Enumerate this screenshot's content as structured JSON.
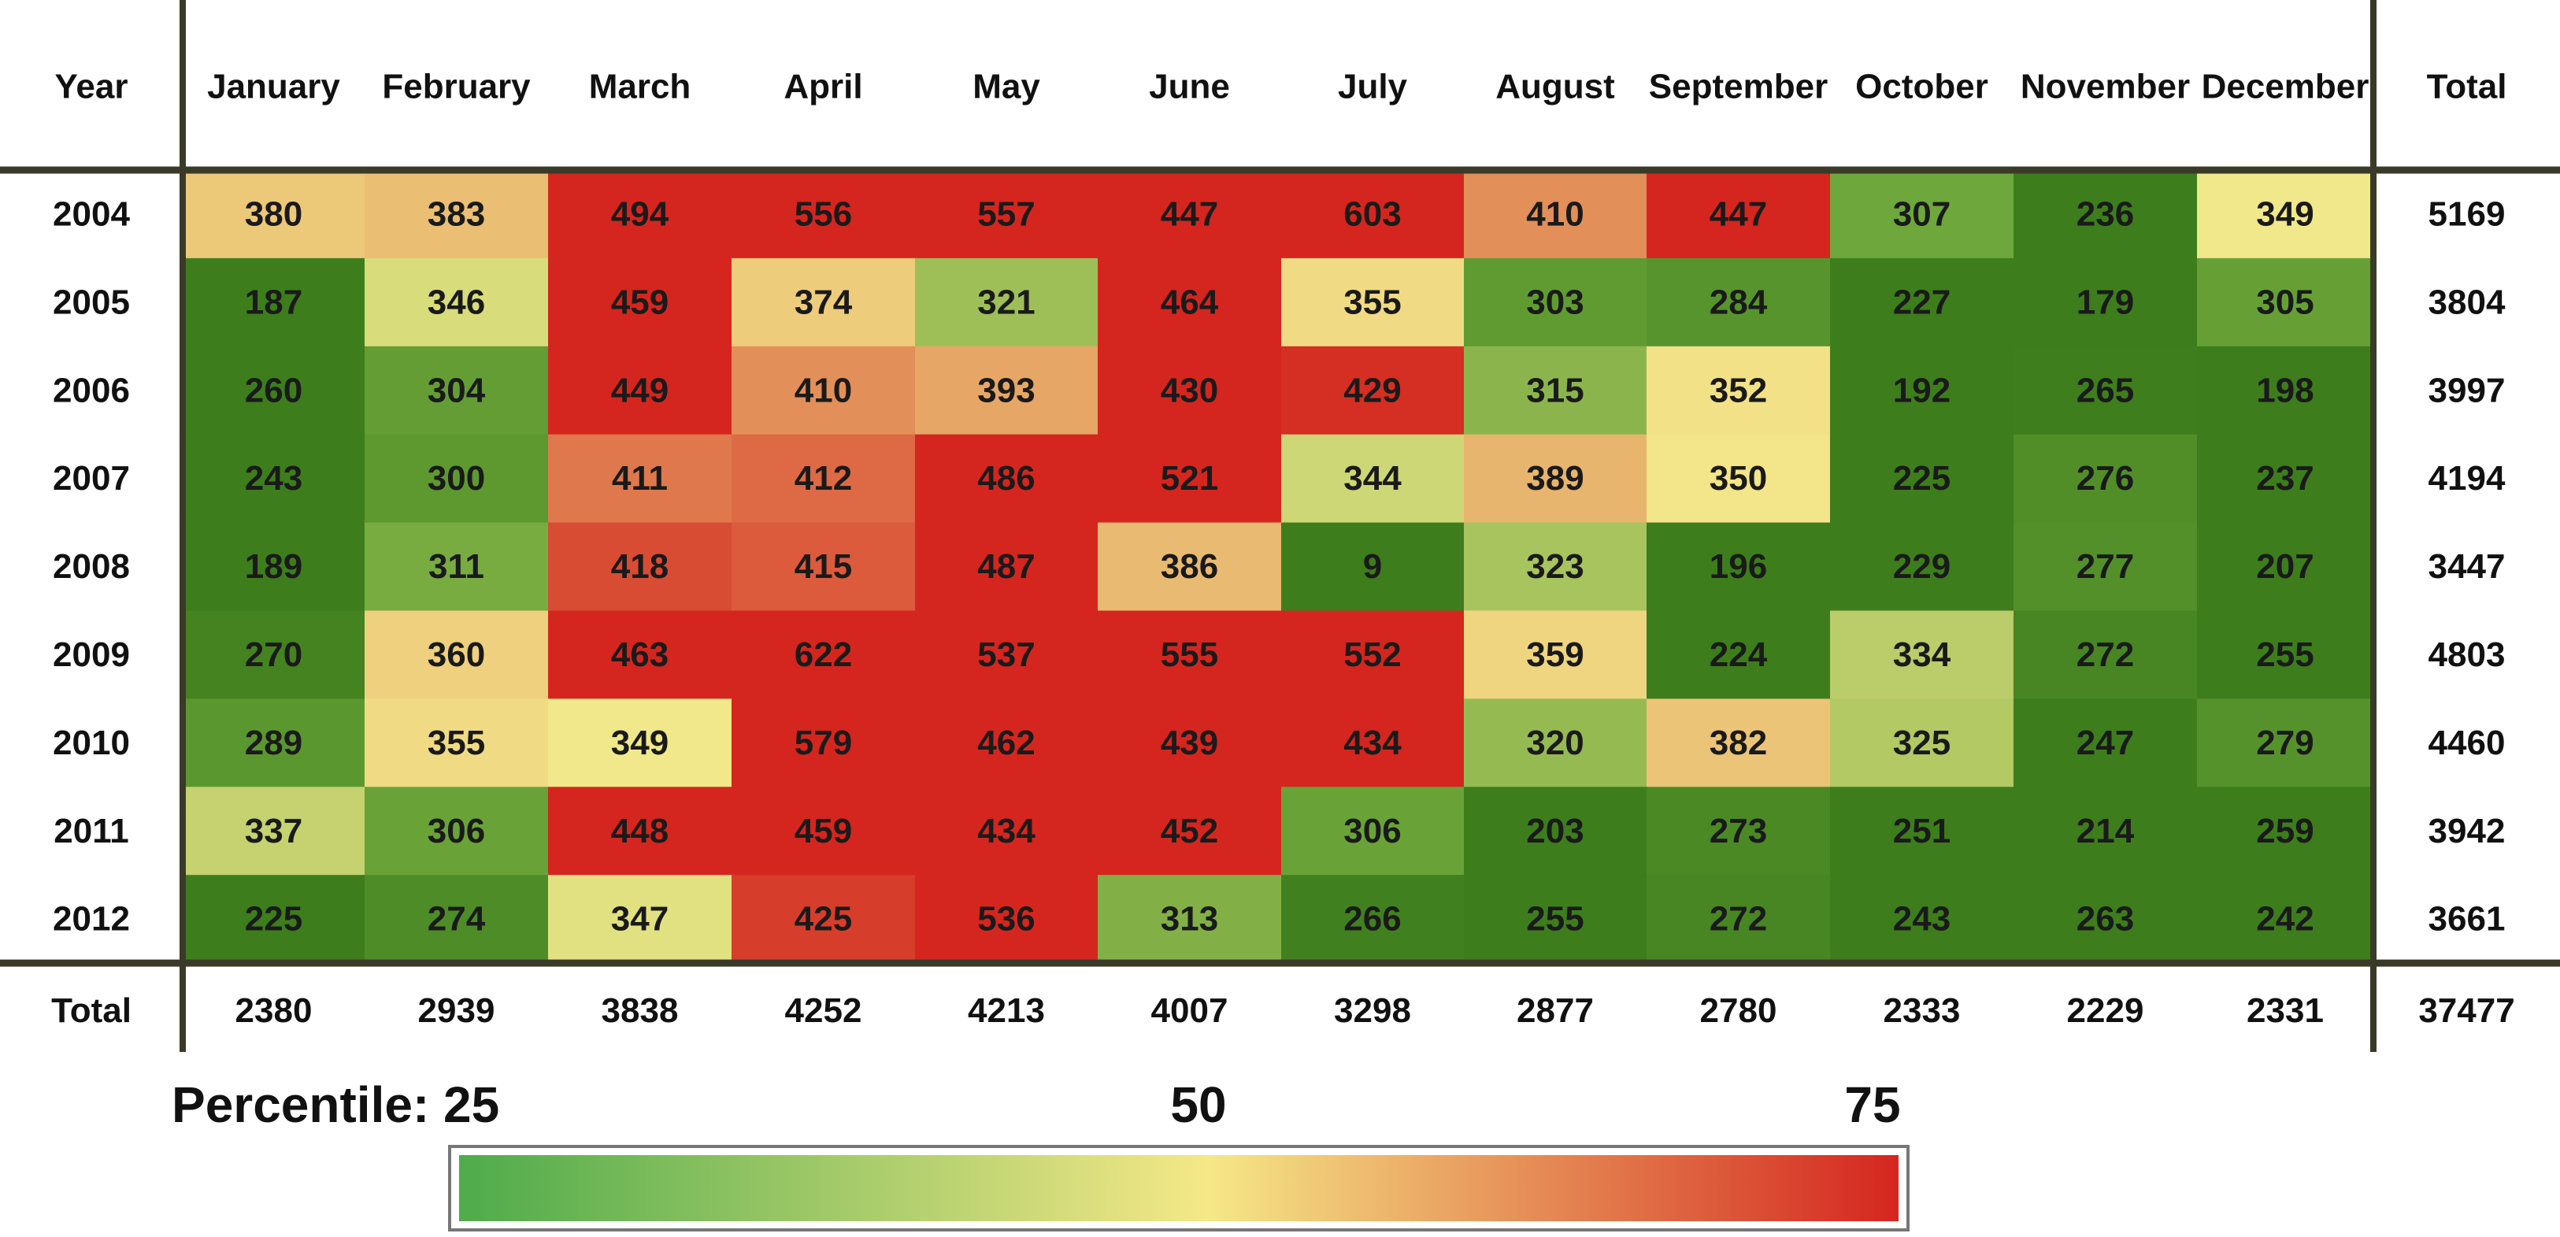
{
  "chart_data": {
    "type": "heatmap",
    "corner_label": "Year",
    "total_label": "Total",
    "columns": [
      "January",
      "February",
      "March",
      "April",
      "May",
      "June",
      "July",
      "August",
      "September",
      "October",
      "November",
      "December"
    ],
    "rows": [
      {
        "year": "2004",
        "values": [
          380,
          383,
          494,
          556,
          557,
          447,
          603,
          410,
          447,
          307,
          236,
          349
        ],
        "total": 5169
      },
      {
        "year": "2005",
        "values": [
          187,
          346,
          459,
          374,
          321,
          464,
          355,
          303,
          284,
          227,
          179,
          305
        ],
        "total": 3804
      },
      {
        "year": "2006",
        "values": [
          260,
          304,
          449,
          410,
          393,
          430,
          429,
          315,
          352,
          192,
          265,
          198
        ],
        "total": 3997
      },
      {
        "year": "2007",
        "values": [
          243,
          300,
          411,
          412,
          486,
          521,
          344,
          389,
          350,
          225,
          276,
          237
        ],
        "total": 4194
      },
      {
        "year": "2008",
        "values": [
          189,
          311,
          418,
          415,
          487,
          386,
          9,
          323,
          196,
          229,
          277,
          207
        ],
        "total": 3447
      },
      {
        "year": "2009",
        "values": [
          270,
          360,
          463,
          622,
          537,
          555,
          552,
          359,
          224,
          334,
          272,
          255
        ],
        "total": 4803
      },
      {
        "year": "2010",
        "values": [
          289,
          355,
          349,
          579,
          462,
          439,
          434,
          320,
          382,
          325,
          247,
          279
        ],
        "total": 4460
      },
      {
        "year": "2011",
        "values": [
          337,
          306,
          448,
          459,
          434,
          452,
          306,
          203,
          273,
          251,
          214,
          259
        ],
        "total": 3942
      },
      {
        "year": "2012",
        "values": [
          225,
          274,
          347,
          425,
          536,
          313,
          266,
          255,
          272,
          243,
          263,
          242
        ],
        "total": 3661
      }
    ],
    "column_totals": [
      2380,
      2939,
      3838,
      4252,
      4213,
      4007,
      3298,
      2877,
      2780,
      2333,
      2229,
      2331
    ],
    "grand_total": 37477,
    "legend": {
      "label_prefix": "Percentile: ",
      "ticks": [
        "25",
        "50",
        "75"
      ],
      "colors": [
        "#4fab4b",
        "#f5e887",
        "#d4261f"
      ]
    },
    "colors": {
      "low": "#3d7d1c",
      "mid_low": "#6da63a",
      "mid": "#f4ea8c",
      "mid_high": "#e8b870",
      "high": "#d4261f",
      "grid_line": "#3a3a28"
    }
  }
}
